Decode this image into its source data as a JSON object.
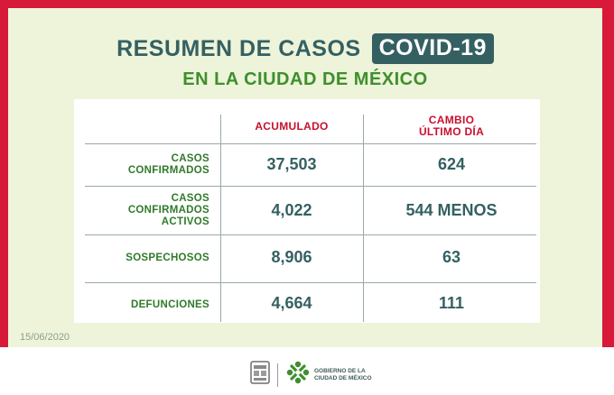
{
  "header": {
    "title": "RESUMEN DE CASOS",
    "badge": "COVID-19",
    "subtitle": "EN LA CIUDAD DE MÉXICO"
  },
  "table": {
    "columns": {
      "accumulated": "ACUMULADO",
      "change_line1": "CAMBIO",
      "change_line2": "ÚLTIMO DÍA"
    },
    "rows": [
      {
        "label_lines": [
          "CASOS",
          "CONFIRMADOS"
        ],
        "accumulated": "37,503",
        "change": "624"
      },
      {
        "label_lines": [
          "CASOS",
          "CONFIRMADOS",
          "ACTIVOS"
        ],
        "accumulated": "4,022",
        "change": "544 MENOS"
      },
      {
        "label_lines": [
          "SOSPECHOSOS"
        ],
        "accumulated": "8,906",
        "change": "63"
      },
      {
        "label_lines": [
          "DEFUNCIONES"
        ],
        "accumulated": "4,664",
        "change": "111"
      }
    ]
  },
  "date": "15/06/2020",
  "footer": {
    "gov_line1": "GOBIERNO DE LA",
    "gov_line2": "CIUDAD DE MÉXICO",
    "icons": [
      "coat-of-arms-icon",
      "cdmx-logo-icon"
    ]
  },
  "colors": {
    "frame": "#d71a3a",
    "panel": "#edf4da",
    "title": "#356062",
    "subtitle": "#3f8f2c",
    "column_header": "#c8102e",
    "row_label": "#2f7a2a"
  }
}
